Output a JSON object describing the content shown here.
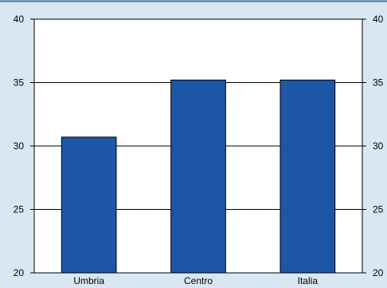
{
  "colors": {
    "background": "#d9e7f2",
    "plot_area": "#ffffff",
    "bar": "#1e56a6",
    "top_rule": "#3a78b5",
    "grid": "#000000"
  },
  "chart_data": {
    "type": "bar",
    "categories": [
      "Umbria",
      "Centro",
      "Italia"
    ],
    "values": [
      30.7,
      35.2,
      35.2
    ],
    "ylim": [
      20,
      40
    ],
    "yticks": [
      20,
      25,
      30,
      35,
      40
    ],
    "y_tick_labels_left": [
      "20",
      "25",
      "30",
      "35",
      "40"
    ],
    "y_tick_labels_right": [
      "20",
      "25",
      "30",
      "35",
      "40"
    ],
    "grid": true,
    "title": "",
    "xlabel": "",
    "ylabel": ""
  }
}
